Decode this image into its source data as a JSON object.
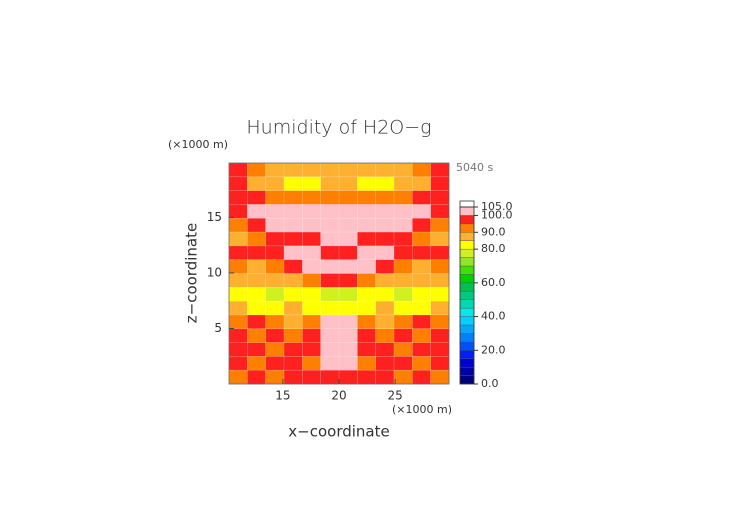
{
  "chart_data": {
    "type": "heatmap",
    "title": "Humidity of H2O−g",
    "x_label": "x−coordinate",
    "y_label": "z−coordinate",
    "x_unit": "(×1000 m)",
    "y_unit": "(×1000 m)",
    "time": "5040 s",
    "xlim": [
      10.2,
      29.8
    ],
    "ylim": [
      0,
      19.9
    ],
    "xticks": [
      15,
      20,
      25
    ],
    "yticks": [
      5,
      10,
      15
    ],
    "z": [
      [
        97,
        93,
        88,
        88,
        88,
        88,
        88,
        88,
        88,
        88,
        93,
        97
      ],
      [
        97,
        88,
        85,
        83,
        83,
        85,
        85,
        83,
        83,
        85,
        88,
        97
      ],
      [
        97,
        97,
        93,
        93,
        93,
        93,
        93,
        93,
        93,
        93,
        97,
        97
      ],
      [
        97,
        102,
        102,
        102,
        102,
        102,
        102,
        102,
        102,
        102,
        102,
        97
      ],
      [
        93,
        97,
        102,
        102,
        102,
        102,
        102,
        102,
        102,
        102,
        97,
        93
      ],
      [
        88,
        93,
        97,
        97,
        97,
        102,
        102,
        97,
        97,
        97,
        93,
        88
      ],
      [
        97,
        97,
        97,
        102,
        102,
        97,
        97,
        102,
        102,
        97,
        97,
        97
      ],
      [
        93,
        88,
        93,
        97,
        102,
        102,
        102,
        102,
        97,
        93,
        88,
        93
      ],
      [
        85,
        85,
        88,
        88,
        93,
        97,
        97,
        93,
        88,
        88,
        85,
        85
      ],
      [
        82,
        82,
        75,
        82,
        82,
        78,
        78,
        82,
        82,
        75,
        82,
        82
      ],
      [
        88,
        82,
        82,
        85,
        82,
        82,
        82,
        82,
        85,
        82,
        82,
        88
      ],
      [
        93,
        97,
        93,
        88,
        93,
        102,
        102,
        93,
        88,
        93,
        97,
        93
      ],
      [
        97,
        93,
        97,
        93,
        97,
        102,
        102,
        97,
        93,
        97,
        93,
        97
      ],
      [
        97,
        97,
        93,
        97,
        97,
        102,
        102,
        97,
        97,
        93,
        97,
        97
      ],
      [
        97,
        93,
        97,
        97,
        93,
        102,
        102,
        93,
        97,
        97,
        93,
        97
      ],
      [
        93,
        97,
        93,
        97,
        97,
        97,
        97,
        97,
        97,
        93,
        97,
        93
      ]
    ],
    "colorbar": {
      "levels": [
        0,
        5,
        10,
        15,
        20,
        25,
        30,
        35,
        40,
        45,
        50,
        55,
        60,
        65,
        70,
        75,
        80,
        85,
        90,
        95,
        100,
        105
      ],
      "colors": [
        "#00007f",
        "#0000a8",
        "#0000d0",
        "#0020f0",
        "#0050ff",
        "#0080ff",
        "#00a8ff",
        "#00d0ff",
        "#00e8e8",
        "#00d8b0",
        "#00c880",
        "#00c050",
        "#00d000",
        "#40e000",
        "#90e820",
        "#d0f020",
        "#ffff00",
        "#ffb030",
        "#ff8000",
        "#ff2020",
        "#ffc0c8"
      ],
      "ticks": [
        {
          "value": 0,
          "label": "0.0"
        },
        {
          "value": 20,
          "label": "20.0"
        },
        {
          "value": 40,
          "label": "40.0"
        },
        {
          "value": 60,
          "label": "60.0"
        },
        {
          "value": 80,
          "label": "80.0"
        },
        {
          "value": 90,
          "label": "90.0"
        },
        {
          "value": 100,
          "label": "100.0"
        },
        {
          "value": 105,
          "label": "105.0"
        }
      ]
    }
  }
}
